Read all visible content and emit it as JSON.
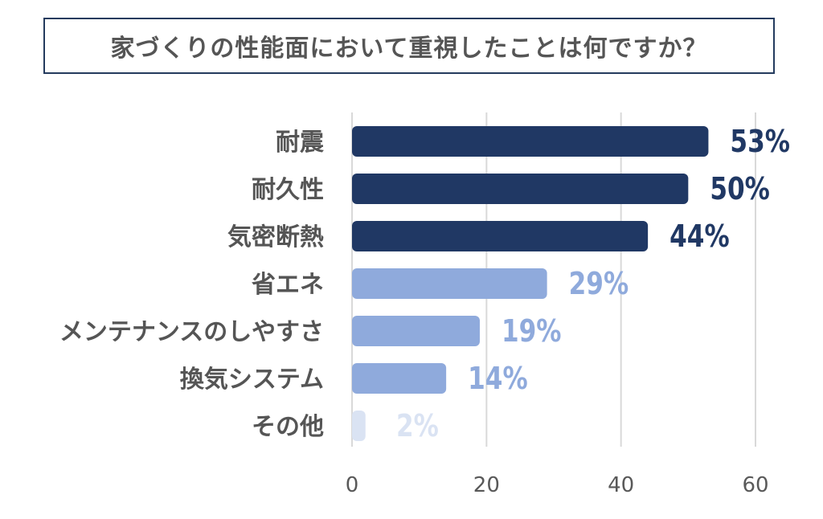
{
  "colors": {
    "dark_bar": "#203864",
    "light_bar": "#8faadc",
    "faint_bar": "#dae3f3",
    "category_text": "#555555",
    "grid": "#d9d9d9",
    "axis_text": "#595959",
    "title_border": "#243b5e"
  },
  "chart_data": {
    "type": "bar",
    "orientation": "horizontal",
    "title": "家づくりの性能面において重視したことは何ですか？",
    "xlabel": "",
    "ylabel": "",
    "xlim": [
      0,
      60
    ],
    "ticks": [
      "0",
      "20",
      "40",
      "60"
    ],
    "tick_values": [
      0,
      20,
      40,
      60
    ],
    "grid": true,
    "categories": [
      "耐震",
      "耐久性",
      "気密断熱",
      "省エネ",
      "メンテナンスのしやすさ",
      "換気システム",
      "その他"
    ],
    "values": [
      53,
      50,
      44,
      29,
      19,
      14,
      2
    ],
    "labels": [
      "53%",
      "50%",
      "44%",
      "29%",
      "19%",
      "14%",
      "2%"
    ],
    "bar_colors": [
      "#203864",
      "#203864",
      "#203864",
      "#8faadc",
      "#8faadc",
      "#8faadc",
      "#dae3f3"
    ]
  }
}
